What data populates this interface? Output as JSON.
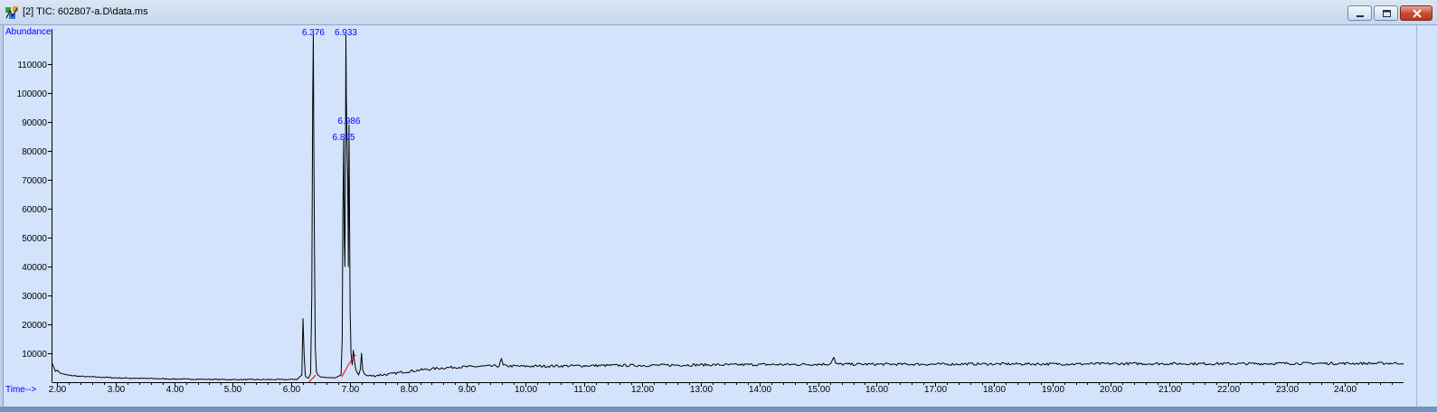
{
  "window": {
    "title": "[2] TIC: 602807-a.D\\data.ms",
    "icon": "chromatogram-app-icon",
    "controls": [
      "minimize-icon",
      "maximize-icon",
      "close-icon"
    ]
  },
  "chart_data": {
    "type": "line",
    "ylabel": "Abundance",
    "xlabel": "Time-->",
    "xlim": [
      1.92,
      25.0
    ],
    "ylim": [
      0,
      120000
    ],
    "x_ticks": [
      2,
      3,
      4,
      5,
      6,
      7,
      8,
      9,
      10,
      11,
      12,
      13,
      14,
      15,
      16,
      17,
      18,
      19,
      20,
      21,
      22,
      23,
      24
    ],
    "x_tick_labels": [
      "2.00",
      "3.00",
      "4.00",
      "5.00",
      "6.00",
      "7.00",
      "8.00",
      "9.00",
      "10.00",
      "11.00",
      "12.00",
      "13.00",
      "14.00",
      "15.00",
      "16.00",
      "17.00",
      "18.00",
      "19.00",
      "20.00",
      "21.00",
      "22.00",
      "23.00",
      "24.00"
    ],
    "y_ticks": [
      10000,
      20000,
      30000,
      40000,
      50000,
      60000,
      70000,
      80000,
      90000,
      100000,
      110000
    ],
    "y_tick_labels": [
      "10000",
      "20000",
      "30000",
      "40000",
      "50000",
      "60000",
      "70000",
      "80000",
      "90000",
      "100000",
      "110000"
    ],
    "grid": false,
    "line_color": "#000000",
    "integration_color": "#ff0000",
    "label_color": "#0000ff",
    "background": "#d3e3fb",
    "peak_labels": [
      {
        "text": "6.376",
        "x": 6.376,
        "y": 120000
      },
      {
        "text": "6.933",
        "x": 6.933,
        "y": 120000
      },
      {
        "text": "6.986",
        "x": 6.986,
        "y": 89000
      },
      {
        "text": "6.895",
        "x": 6.895,
        "y": 83500
      }
    ],
    "series": [
      {
        "x": [
          1.92,
          1.94,
          1.97,
          2.0,
          2.05,
          2.1,
          2.2,
          2.35,
          2.5,
          2.8,
          3.0,
          3.5,
          4.0,
          4.5,
          5.0,
          5.5,
          5.9,
          6.1,
          6.18,
          6.2,
          6.22,
          6.24,
          6.27,
          6.3,
          6.33,
          6.35,
          6.365,
          6.376,
          6.385,
          6.395,
          6.41,
          6.43,
          6.46,
          6.5,
          6.6,
          6.75,
          6.85,
          6.87,
          6.88,
          6.895,
          6.905,
          6.915,
          6.925,
          6.933,
          6.94,
          6.95,
          6.965,
          6.975,
          6.986,
          6.995,
          7.005,
          7.02,
          7.04,
          7.06,
          7.08,
          7.1,
          7.12,
          7.15,
          7.18,
          7.2,
          7.22,
          7.25,
          7.3,
          7.4,
          7.5,
          7.7,
          7.9,
          8.2,
          8.5,
          8.8,
          9.0,
          9.3,
          9.55,
          9.59,
          9.62,
          9.7,
          10.0,
          10.5,
          11.0,
          11.5,
          12.0,
          12.5,
          13.0,
          13.5,
          14.0,
          14.5,
          15.0,
          15.2,
          15.27,
          15.3,
          15.4,
          15.6,
          16.0,
          16.5,
          17.0,
          17.5,
          18.0,
          18.5,
          19.0,
          19.5,
          20.0,
          20.5,
          21.0,
          21.5,
          22.0,
          22.5,
          23.0,
          23.5,
          24.0,
          24.5,
          25.0
        ],
        "y": [
          6500,
          5200,
          3800,
          4200,
          3200,
          2800,
          2400,
          2100,
          1900,
          1700,
          1500,
          1300,
          1100,
          1000,
          900,
          900,
          900,
          1000,
          2500,
          22000,
          9000,
          2200,
          1500,
          1500,
          3000,
          30000,
          96000,
          120000,
          82000,
          49000,
          12000,
          3500,
          2400,
          1800,
          1600,
          1500,
          2500,
          15000,
          57000,
          84000,
          50000,
          40000,
          70000,
          120000,
          99000,
          85000,
          70000,
          40000,
          89000,
          57000,
          25000,
          10000,
          6000,
          11000,
          7000,
          4500,
          3500,
          2500,
          4500,
          10000,
          4200,
          2800,
          2200,
          2200,
          2500,
          2800,
          3500,
          4200,
          4800,
          5200,
          5300,
          5500,
          5600,
          8000,
          5700,
          5600,
          5500,
          5600,
          5700,
          5800,
          5800,
          5900,
          6000,
          6000,
          6100,
          6100,
          6200,
          6300,
          8500,
          6300,
          6200,
          6200,
          6200,
          6200,
          6200,
          6300,
          6300,
          6300,
          6300,
          6300,
          6400,
          6400,
          6400,
          6400,
          6400,
          6400,
          6500,
          6500,
          6500,
          6500,
          6600
        ]
      }
    ],
    "integration_baselines": [
      {
        "x": [
          6.3,
          6.42
        ],
        "y": [
          0,
          2500
        ]
      },
      {
        "x": [
          6.86,
          6.99
        ],
        "y": [
          1800,
          6500
        ]
      },
      {
        "x": [
          6.99,
          7.1
        ],
        "y": [
          6500,
          9500
        ]
      }
    ]
  }
}
